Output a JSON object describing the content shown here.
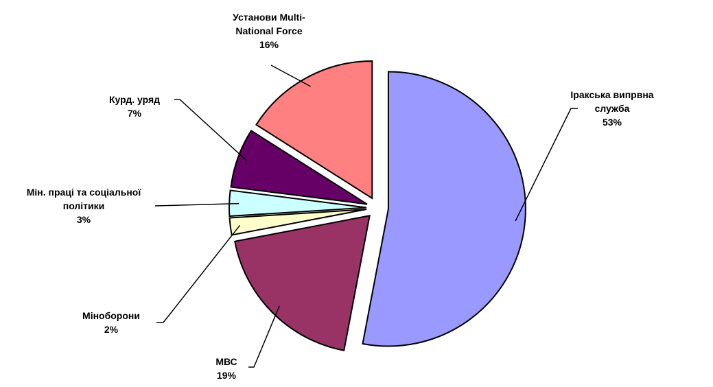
{
  "chart_data": {
    "type": "pie",
    "categories": [
      "Іракська випрвна служба",
      "МВС",
      "Міноборони",
      "Мін. праці та соціальної політики",
      "Курд. уряд",
      "Установи Multi-National Force"
    ],
    "values": [
      53,
      19,
      2,
      3,
      7,
      16
    ],
    "value_labels": [
      "53%",
      "19%",
      "2%",
      "3%",
      "7%",
      "16%"
    ],
    "colors": [
      "#9999ff",
      "#993366",
      "#ffffcc",
      "#ccffff",
      "#660066",
      "#ff8080"
    ]
  }
}
